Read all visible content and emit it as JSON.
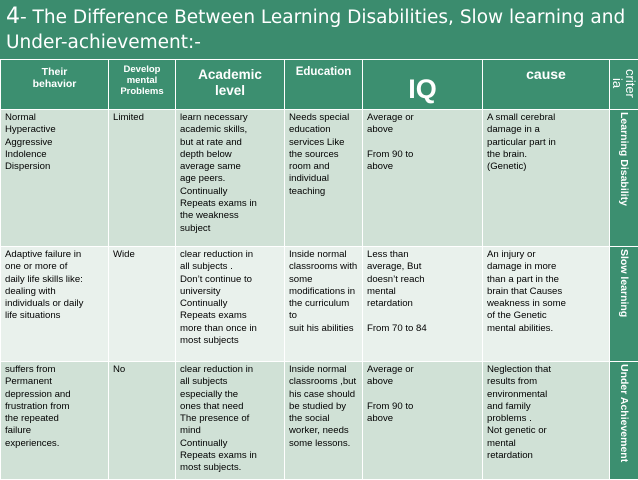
{
  "title": {
    "number": "4",
    "text": "- The Difference Between Learning Disabilities, Slow learning and Under-achievement:-"
  },
  "headers": {
    "behavior": [
      "Their",
      "behavior"
    ],
    "develop": [
      "Develop",
      "mental",
      "Problems"
    ],
    "academic": [
      "Academic",
      "level"
    ],
    "education": "Education",
    "iq": "IQ",
    "cause": "cause",
    "criteria": "criter ia"
  },
  "rows": [
    {
      "label": "Learning Disability",
      "behavior": [
        "Normal",
        "Hyperactive",
        "Aggressive",
        "Indolence",
        "Dispersion"
      ],
      "develop": [
        "Limited"
      ],
      "academic": [
        "learn necessary",
        "academic skills,",
        "but at rate and",
        "depth below",
        "average same",
        "age peers.",
        " Continually",
        "Repeats exams in",
        "the weakness",
        "subject"
      ],
      "education": [
        "Needs special",
        "education",
        "services Like",
        "the sources",
        "room and",
        "individual",
        "teaching"
      ],
      "iq": [
        "Average or",
        "above",
        "",
        "From 90 to",
        "above"
      ],
      "cause": [
        "A small cerebral",
        "damage in a",
        "particular part in",
        "the brain.",
        "(Genetic)"
      ]
    },
    {
      "label": "Slow learning",
      "behavior": [
        "Adaptive failure in",
        "one or more of",
        "daily life skills like:",
        "dealing with",
        "individuals or daily",
        "life situations"
      ],
      "develop": [
        "Wide"
      ],
      "academic": [
        "clear reduction in",
        "all subjects .",
        "Don’t continue to",
        "university",
        "Continually",
        "Repeats exams",
        "more than once in",
        "most subjects"
      ],
      "education": [
        "Inside normal",
        "classrooms with",
        "some",
        "modifications in",
        "the curriculum to",
        "suit his abilities"
      ],
      "iq": [
        "Less than",
        "average, But",
        "doesn’t reach",
        "mental",
        "retardation",
        "",
        "From 70 to 84"
      ],
      "cause": [
        "An injury or",
        "damage in more",
        "than a part in the",
        "brain that Causes",
        "weakness in some",
        "of the Genetic",
        "mental abilities."
      ]
    },
    {
      "label": "Under Achievement",
      "behavior": [
        "suffers from",
        "Permanent",
        "depression and",
        "frustration from",
        "the repeated",
        "failure",
        "experiences."
      ],
      "develop": [
        "No"
      ],
      "academic": [
        "clear reduction in",
        "all subjects",
        "especially the",
        "ones that need",
        "The presence of",
        "mind",
        "Continually",
        "Repeats exams in",
        "most subjects."
      ],
      "education": [
        "Inside normal",
        "classrooms  ,but",
        "his case should",
        "be studied by",
        "the social",
        "worker, needs",
        "some lessons."
      ],
      "iq": [
        "Average or",
        "above",
        "",
        "From 90 to",
        "above"
      ],
      "cause": [
        "Neglection that",
        "results from",
        "environmental",
        "and family",
        "problems .",
        "Not genetic or",
        "mental",
        "retardation"
      ]
    }
  ]
}
